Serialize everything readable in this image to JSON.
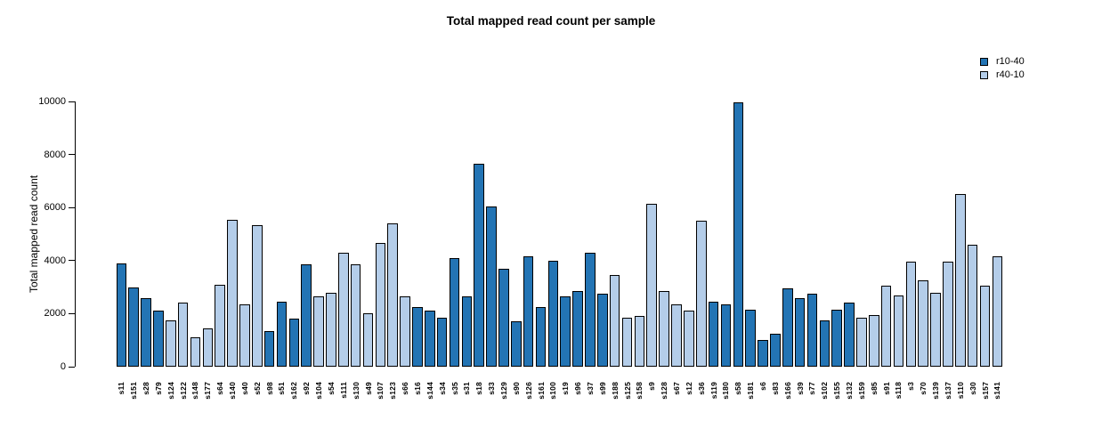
{
  "chart_data": {
    "type": "bar",
    "title": "Total mapped read count per sample",
    "xlabel": "",
    "ylabel": "Total mapped read count",
    "ylim": [
      0,
      10000
    ],
    "y_ticks": [
      0,
      2000,
      4000,
      6000,
      8000,
      10000
    ],
    "grid": false,
    "legend_position": "top-right",
    "legend": [
      {
        "label": "r10-40",
        "series": "r10-40"
      },
      {
        "label": "r40-10",
        "series": "r40-10"
      }
    ],
    "series_colors": {
      "r10-40": "#2374B4",
      "r40-10": "#B4CDE9"
    },
    "bars": [
      {
        "label": "s11",
        "value": 3900,
        "series": "r10-40"
      },
      {
        "label": "s151",
        "value": 3000,
        "series": "r10-40"
      },
      {
        "label": "s28",
        "value": 2600,
        "series": "r10-40"
      },
      {
        "label": "s79",
        "value": 2100,
        "series": "r10-40"
      },
      {
        "label": "s124",
        "value": 1750,
        "series": "r40-10"
      },
      {
        "label": "s122",
        "value": 2400,
        "series": "r40-10"
      },
      {
        "label": "s148",
        "value": 1100,
        "series": "r40-10"
      },
      {
        "label": "s177",
        "value": 1450,
        "series": "r40-10"
      },
      {
        "label": "s64",
        "value": 3100,
        "series": "r40-10"
      },
      {
        "label": "s140",
        "value": 5550,
        "series": "r40-10"
      },
      {
        "label": "s40",
        "value": 2350,
        "series": "r40-10"
      },
      {
        "label": "s52",
        "value": 5350,
        "series": "r40-10"
      },
      {
        "label": "s98",
        "value": 1350,
        "series": "r10-40"
      },
      {
        "label": "s51",
        "value": 2450,
        "series": "r10-40"
      },
      {
        "label": "s162",
        "value": 1800,
        "series": "r10-40"
      },
      {
        "label": "s92",
        "value": 3850,
        "series": "r10-40"
      },
      {
        "label": "s104",
        "value": 2650,
        "series": "r40-10"
      },
      {
        "label": "s54",
        "value": 2800,
        "series": "r40-10"
      },
      {
        "label": "s111",
        "value": 4300,
        "series": "r40-10"
      },
      {
        "label": "s130",
        "value": 3850,
        "series": "r40-10"
      },
      {
        "label": "s49",
        "value": 2000,
        "series": "r40-10"
      },
      {
        "label": "s107",
        "value": 4650,
        "series": "r40-10"
      },
      {
        "label": "s123",
        "value": 5400,
        "series": "r40-10"
      },
      {
        "label": "s66",
        "value": 2650,
        "series": "r40-10"
      },
      {
        "label": "s16",
        "value": 2250,
        "series": "r10-40"
      },
      {
        "label": "s144",
        "value": 2100,
        "series": "r10-40"
      },
      {
        "label": "s34",
        "value": 1850,
        "series": "r10-40"
      },
      {
        "label": "s35",
        "value": 4100,
        "series": "r10-40"
      },
      {
        "label": "s31",
        "value": 2650,
        "series": "r10-40"
      },
      {
        "label": "s18",
        "value": 7650,
        "series": "r10-40"
      },
      {
        "label": "s33",
        "value": 6050,
        "series": "r10-40"
      },
      {
        "label": "s129",
        "value": 3700,
        "series": "r10-40"
      },
      {
        "label": "s90",
        "value": 1700,
        "series": "r10-40"
      },
      {
        "label": "s126",
        "value": 4150,
        "series": "r10-40"
      },
      {
        "label": "s161",
        "value": 2250,
        "series": "r10-40"
      },
      {
        "label": "s100",
        "value": 4000,
        "series": "r10-40"
      },
      {
        "label": "s19",
        "value": 2650,
        "series": "r10-40"
      },
      {
        "label": "s96",
        "value": 2850,
        "series": "r10-40"
      },
      {
        "label": "s37",
        "value": 4300,
        "series": "r10-40"
      },
      {
        "label": "s99",
        "value": 2750,
        "series": "r10-40"
      },
      {
        "label": "s188",
        "value": 3450,
        "series": "r40-10"
      },
      {
        "label": "s125",
        "value": 1850,
        "series": "r40-10"
      },
      {
        "label": "s158",
        "value": 1900,
        "series": "r40-10"
      },
      {
        "label": "s9",
        "value": 6150,
        "series": "r40-10"
      },
      {
        "label": "s128",
        "value": 2850,
        "series": "r40-10"
      },
      {
        "label": "s67",
        "value": 2350,
        "series": "r40-10"
      },
      {
        "label": "s12",
        "value": 2100,
        "series": "r40-10"
      },
      {
        "label": "s36",
        "value": 5500,
        "series": "r40-10"
      },
      {
        "label": "s119",
        "value": 2450,
        "series": "r10-40"
      },
      {
        "label": "s180",
        "value": 2350,
        "series": "r10-40"
      },
      {
        "label": "s58",
        "value": 9950,
        "series": "r10-40"
      },
      {
        "label": "s181",
        "value": 2150,
        "series": "r10-40"
      },
      {
        "label": "s6",
        "value": 1000,
        "series": "r10-40"
      },
      {
        "label": "s83",
        "value": 1250,
        "series": "r10-40"
      },
      {
        "label": "s166",
        "value": 2950,
        "series": "r10-40"
      },
      {
        "label": "s39",
        "value": 2600,
        "series": "r10-40"
      },
      {
        "label": "s77",
        "value": 2750,
        "series": "r10-40"
      },
      {
        "label": "s102",
        "value": 1750,
        "series": "r10-40"
      },
      {
        "label": "s155",
        "value": 2150,
        "series": "r10-40"
      },
      {
        "label": "s132",
        "value": 2400,
        "series": "r10-40"
      },
      {
        "label": "s159",
        "value": 1850,
        "series": "r40-10"
      },
      {
        "label": "s85",
        "value": 1950,
        "series": "r40-10"
      },
      {
        "label": "s91",
        "value": 3050,
        "series": "r40-10"
      },
      {
        "label": "s118",
        "value": 2700,
        "series": "r40-10"
      },
      {
        "label": "s3",
        "value": 3950,
        "series": "r40-10"
      },
      {
        "label": "s70",
        "value": 3250,
        "series": "r40-10"
      },
      {
        "label": "s139",
        "value": 2800,
        "series": "r40-10"
      },
      {
        "label": "s137",
        "value": 3950,
        "series": "r40-10"
      },
      {
        "label": "s110",
        "value": 6500,
        "series": "r40-10"
      },
      {
        "label": "s30",
        "value": 4600,
        "series": "r40-10"
      },
      {
        "label": "s157",
        "value": 3050,
        "series": "r40-10"
      },
      {
        "label": "s141",
        "value": 4150,
        "series": "r40-10"
      }
    ]
  }
}
